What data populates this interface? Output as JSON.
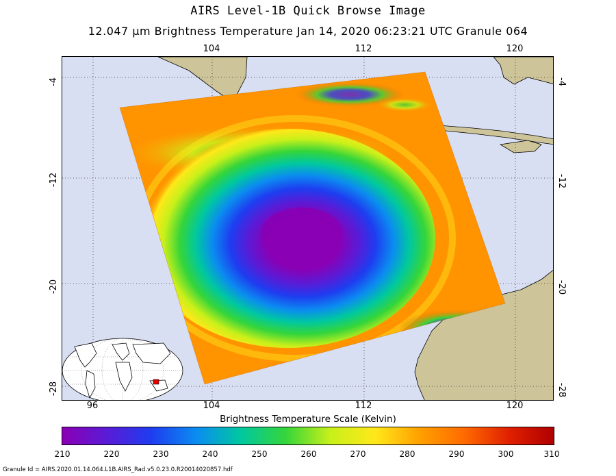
{
  "header": {
    "title": "AIRS Level-1B Quick Browse Image",
    "subtitle": "12.047 μm Brightness Temperature   Jan 14, 2020 06:23:21 UTC   Granule 064"
  },
  "map": {
    "top_lon_ticks": [
      "104",
      "112",
      "120"
    ],
    "bottom_lon_ticks": [
      "96",
      "104",
      "112",
      "120"
    ],
    "left_lat_ticks": [
      "-4",
      "-12",
      "-20",
      "-28"
    ],
    "right_lat_ticks": [
      "-4",
      "-12",
      "-20",
      "-28"
    ],
    "ocean_color": "#d8dff2",
    "land_color": "#cdc49a",
    "inset_icon": "globe-locator-icon"
  },
  "legend": {
    "scale_label": "Brightness Temperature Scale (Kelvin)",
    "tick_labels": [
      "210",
      "220",
      "230",
      "240",
      "250",
      "260",
      "270",
      "280",
      "290",
      "300",
      "310"
    ],
    "colors": [
      "#8a00b4",
      "#5a1bd6",
      "#1e3df0",
      "#0b8cf0",
      "#00c8a0",
      "#35d53a",
      "#c8f01a",
      "#ffe81a",
      "#ffa000",
      "#ff6a00",
      "#e02000",
      "#b00000"
    ]
  },
  "footer": {
    "granule_id": "Granule Id = AIRS.2020.01.14.064.L1B.AIRS_Rad.v5.0.23.0.R20014020857.hdf"
  }
}
